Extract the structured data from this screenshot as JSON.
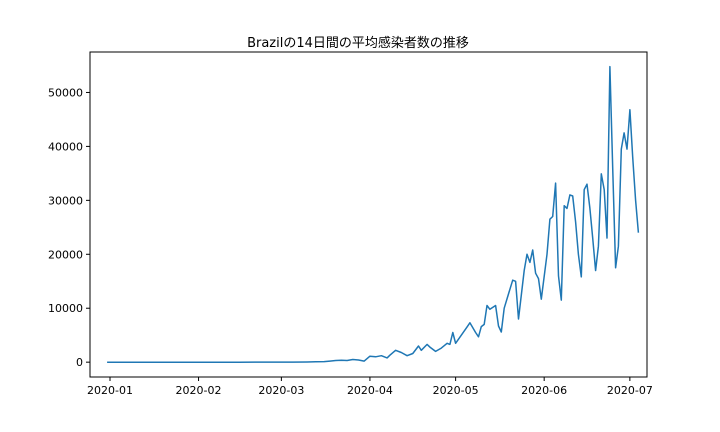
{
  "chart_data": {
    "type": "line",
    "title": "Brazilの14日間の平均感染者数の推移",
    "xlabel": "",
    "ylabel": "",
    "xlim": [
      "2019-12-25",
      "2020-07-07"
    ],
    "ylim": [
      -2750,
      57500
    ],
    "x_ticks": [
      "2020-01",
      "2020-02",
      "2020-03",
      "2020-04",
      "2020-05",
      "2020-06",
      "2020-07"
    ],
    "y_ticks": [
      0,
      10000,
      20000,
      30000,
      40000,
      50000
    ],
    "grid": false,
    "line_color": "#1f77b4",
    "series": [
      {
        "points": [
          [
            "2019-12-31",
            0
          ],
          [
            "2020-01-15",
            0
          ],
          [
            "2020-02-01",
            0
          ],
          [
            "2020-02-15",
            0
          ],
          [
            "2020-03-01",
            10
          ],
          [
            "2020-03-05",
            20
          ],
          [
            "2020-03-10",
            40
          ],
          [
            "2020-03-13",
            60
          ],
          [
            "2020-03-16",
            100
          ],
          [
            "2020-03-18",
            200
          ],
          [
            "2020-03-20",
            300
          ],
          [
            "2020-03-22",
            350
          ],
          [
            "2020-03-24",
            300
          ],
          [
            "2020-03-26",
            500
          ],
          [
            "2020-03-28",
            400
          ],
          [
            "2020-03-30",
            200
          ],
          [
            "2020-04-01",
            1100
          ],
          [
            "2020-04-03",
            1000
          ],
          [
            "2020-04-05",
            1200
          ],
          [
            "2020-04-07",
            800
          ],
          [
            "2020-04-08",
            1300
          ],
          [
            "2020-04-10",
            2200
          ],
          [
            "2020-04-12",
            1800
          ],
          [
            "2020-04-14",
            1200
          ],
          [
            "2020-04-16",
            1600
          ],
          [
            "2020-04-18",
            3000
          ],
          [
            "2020-04-19",
            2200
          ],
          [
            "2020-04-21",
            3300
          ],
          [
            "2020-04-22",
            2800
          ],
          [
            "2020-04-24",
            2000
          ],
          [
            "2020-04-26",
            2600
          ],
          [
            "2020-04-28",
            3500
          ],
          [
            "2020-04-29",
            3300
          ],
          [
            "2020-04-30",
            5500
          ],
          [
            "2020-05-01",
            3500
          ],
          [
            "2020-05-03",
            5000
          ],
          [
            "2020-05-05",
            6500
          ],
          [
            "2020-05-06",
            7300
          ],
          [
            "2020-05-08",
            5500
          ],
          [
            "2020-05-09",
            4700
          ],
          [
            "2020-05-10",
            6600
          ],
          [
            "2020-05-11",
            7000
          ],
          [
            "2020-05-12",
            10500
          ],
          [
            "2020-05-13",
            9800
          ],
          [
            "2020-05-15",
            10500
          ],
          [
            "2020-05-16",
            6700
          ],
          [
            "2020-05-17",
            5600
          ],
          [
            "2020-05-18",
            10000
          ],
          [
            "2020-05-20",
            13500
          ],
          [
            "2020-05-21",
            15200
          ],
          [
            "2020-05-22",
            15000
          ],
          [
            "2020-05-23",
            8000
          ],
          [
            "2020-05-25",
            17000
          ],
          [
            "2020-05-26",
            20000
          ],
          [
            "2020-05-27",
            18500
          ],
          [
            "2020-05-28",
            20800
          ],
          [
            "2020-05-29",
            16500
          ],
          [
            "2020-05-30",
            15500
          ],
          [
            "2020-05-31",
            11700
          ],
          [
            "2020-06-02",
            20000
          ],
          [
            "2020-06-03",
            26500
          ],
          [
            "2020-06-04",
            27000
          ],
          [
            "2020-06-05",
            33200
          ],
          [
            "2020-06-06",
            16000
          ],
          [
            "2020-06-07",
            11500
          ],
          [
            "2020-06-08",
            29000
          ],
          [
            "2020-06-09",
            28500
          ],
          [
            "2020-06-10",
            31000
          ],
          [
            "2020-06-11",
            30800
          ],
          [
            "2020-06-12",
            26000
          ],
          [
            "2020-06-13",
            20000
          ],
          [
            "2020-06-14",
            15800
          ],
          [
            "2020-06-15",
            32000
          ],
          [
            "2020-06-16",
            33000
          ],
          [
            "2020-06-17",
            28500
          ],
          [
            "2020-06-18",
            23000
          ],
          [
            "2020-06-19",
            17000
          ],
          [
            "2020-06-20",
            21500
          ],
          [
            "2020-06-21",
            34900
          ],
          [
            "2020-06-22",
            32000
          ],
          [
            "2020-06-23",
            23000
          ],
          [
            "2020-06-24",
            54800
          ],
          [
            "2020-06-25",
            36000
          ],
          [
            "2020-06-26",
            17500
          ],
          [
            "2020-06-27",
            21500
          ],
          [
            "2020-06-28",
            39500
          ],
          [
            "2020-06-29",
            42500
          ],
          [
            "2020-06-30",
            39500
          ],
          [
            "2020-07-01",
            46800
          ],
          [
            "2020-07-02",
            38000
          ],
          [
            "2020-07-03",
            30000
          ],
          [
            "2020-07-04",
            24000
          ]
        ]
      }
    ]
  }
}
